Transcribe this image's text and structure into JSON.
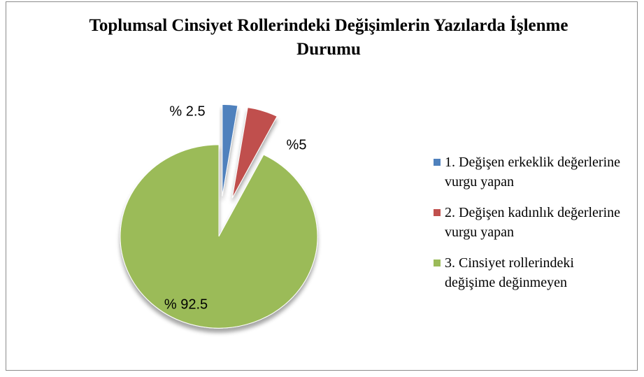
{
  "chart_data": {
    "type": "pie",
    "title": "Toplumsal Cinsiyet Rollerindeki Değişimlerin Yazılarda İşlenme Durumu",
    "categories": [
      "1. Değişen erkeklik değerlerine vurgu yapan",
      "2. Değişen kadınlık değerlerine vurgu yapan",
      "3. Cinsiyet rollerindeki değişime değinmeyen"
    ],
    "values": [
      2.5,
      5,
      92.5
    ],
    "value_labels": [
      "% 2.5",
      "%5",
      "% 92.5"
    ],
    "colors": [
      "#4f81bd",
      "#c0504d",
      "#9bbb59"
    ],
    "legend": "right"
  }
}
